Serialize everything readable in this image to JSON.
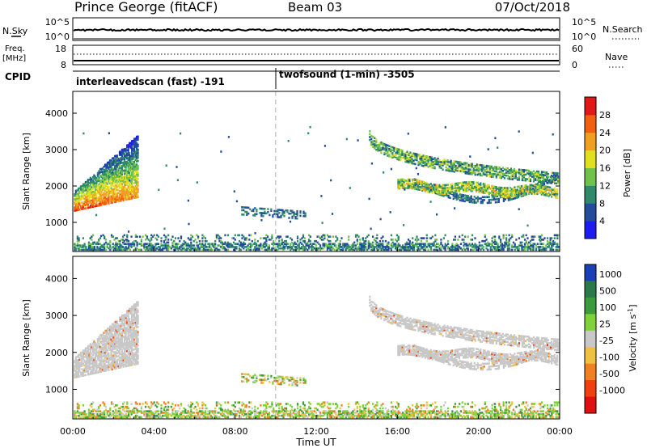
{
  "header": {
    "title": "Prince George (fitACF)",
    "beam": "Beam 03",
    "date": "07/Oct/2018"
  },
  "top_panels": {
    "nsky_label": "N.Sky",
    "nsky_ticks": [
      "10^5",
      "10^0"
    ],
    "nsearch_label": "N.Search",
    "nsearch_ticks": [
      "10^5",
      "10^0"
    ],
    "freq_label": "Freq.",
    "freq_unit": "[MHz]",
    "freq_ticks": [
      "18",
      "8"
    ],
    "nave_label": "Nave",
    "nave_ticks": [
      "60",
      "0"
    ],
    "cpid_label": "CPID",
    "cpid_segments": [
      {
        "name": "interleavedscan (fast) -191",
        "start": "00:00",
        "end": "10:00"
      },
      {
        "name": "twofsound (1-min) -3505",
        "start": "10:00",
        "end": "24:00"
      }
    ]
  },
  "chart_data": [
    {
      "type": "heatmap",
      "title": "",
      "xlabel": "",
      "ylabel": "Slant Range [km]",
      "x_ticks": [
        "00:00",
        "04:00",
        "08:00",
        "12:00",
        "16:00",
        "20:00",
        "00:00"
      ],
      "y_ticks": [
        1000,
        2000,
        3000,
        4000
      ],
      "ylim": [
        200,
        4600
      ],
      "xlim_hours": [
        0,
        24
      ],
      "colorbar": {
        "label": "Power [dB]",
        "ticks": [
          4,
          8,
          12,
          16,
          20,
          24,
          28
        ],
        "colors": [
          "#1c1cf0",
          "#234c9c",
          "#2f8a6c",
          "#6fc24a",
          "#e0e020",
          "#f0a020",
          "#f06010",
          "#e01818"
        ]
      },
      "features": [
        {
          "name": "early-band",
          "hours": [
            0.0,
            3.2
          ],
          "range_km": [
            1300,
            3400
          ],
          "power_db": [
            8,
            30
          ]
        },
        {
          "name": "evening-band-upper",
          "hours": [
            14.6,
            23.9
          ],
          "range_km": [
            1700,
            3500
          ],
          "power_db": [
            4,
            20
          ]
        },
        {
          "name": "evening-band-lower",
          "hours": [
            17.0,
            23.9
          ],
          "range_km": [
            1300,
            2200
          ],
          "power_db": [
            4,
            12
          ]
        },
        {
          "name": "midday-patch",
          "hours": [
            8.3,
            11.5
          ],
          "range_km": [
            1050,
            1450
          ],
          "power_db": [
            4,
            12
          ]
        },
        {
          "name": "near-range-scatter",
          "hours": [
            0.0,
            24.0
          ],
          "range_km": [
            200,
            700
          ],
          "power_db": [
            4,
            16
          ]
        }
      ]
    },
    {
      "type": "heatmap",
      "title": "",
      "xlabel": "Time UT",
      "ylabel": "Slant Range [km]",
      "x_ticks": [
        "00:00",
        "04:00",
        "08:00",
        "12:00",
        "16:00",
        "20:00",
        "00:00"
      ],
      "y_ticks": [
        1000,
        2000,
        3000,
        4000
      ],
      "ylim": [
        200,
        4600
      ],
      "xlim_hours": [
        0,
        24
      ],
      "colorbar": {
        "label": "Velocity [m s^-1]",
        "ticks": [
          "1000",
          "500",
          "100",
          "25",
          "-25",
          "-100",
          "-500",
          "-1000"
        ],
        "colors": [
          "#1b3fb4",
          "#2a7a4a",
          "#3a9c3a",
          "#7ed23a",
          "#c8c8c8",
          "#f0c040",
          "#f08020",
          "#f04010",
          "#e01010"
        ]
      },
      "features": [
        {
          "name": "early-band",
          "hours": [
            0.0,
            3.2
          ],
          "range_km": [
            1300,
            3400
          ],
          "velocity": "ground scatter (-25..25)"
        },
        {
          "name": "evening-band",
          "hours": [
            14.6,
            23.9
          ],
          "range_km": [
            1300,
            3500
          ],
          "velocity": "ground scatter (-25..25)"
        },
        {
          "name": "near-range-scatter",
          "hours": [
            0.0,
            24.0
          ],
          "range_km": [
            200,
            700
          ],
          "velocity": "mixed, mostly -100..100"
        }
      ]
    }
  ]
}
